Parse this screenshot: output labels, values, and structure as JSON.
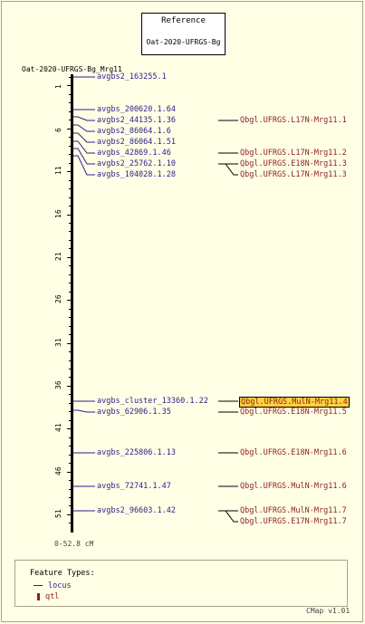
{
  "reference": {
    "heading": "Reference",
    "map_name": "Oat-2020-UFRGS-Bg"
  },
  "map": {
    "title": "Oat-2020-UFRGS-Bg_Mrg11",
    "range_label": "0-52.8 cM"
  },
  "axis": {
    "unit": "cM",
    "min": 0,
    "max": 52.8,
    "tick_labels": [
      "1",
      "6",
      "11",
      "16",
      "21",
      "26",
      "31",
      "36",
      "41",
      "46",
      "51"
    ]
  },
  "loci": [
    {
      "name": "avgbs2_163255.1",
      "pos": 0
    },
    {
      "name": "avgbs_200620.1.64",
      "pos": 3.8
    },
    {
      "name": "avgbs2_44135.1.36",
      "pos": 4.6
    },
    {
      "name": "avgbs2_86064.1.6",
      "pos": 5.6
    },
    {
      "name": "avgbs2_86064.1.51",
      "pos": 6.5
    },
    {
      "name": "avgbs_42869.1.46",
      "pos": 7.5
    },
    {
      "name": "avgbs2_25762.1.10",
      "pos": 8.3
    },
    {
      "name": "avgbs_104028.1.28",
      "pos": 9.2
    },
    {
      "name": "avgbs_cluster_13360.1.22",
      "pos": 37.8
    },
    {
      "name": "avgbs_62906.1.35",
      "pos": 38.9
    },
    {
      "name": "avgbs_225806.1.13",
      "pos": 43.8
    },
    {
      "name": "avgbs_72741.1.47",
      "pos": 47.7
    },
    {
      "name": "avgbs2_96603.1.42",
      "pos": 50.6
    }
  ],
  "qtls": [
    {
      "name": "Qbgl.UFRGS.L17N-Mrg11.1",
      "locus": 2,
      "highlight": false
    },
    {
      "name": "Qbgl.UFRGS.L17N-Mrg11.2",
      "locus": 5,
      "highlight": false
    },
    {
      "name": "Qbgl.UFRGS.E18N-Mrg11.3",
      "locus": 6,
      "highlight": false
    },
    {
      "name": "Qbgl.UFRGS.L17N-Mrg11.3",
      "locus": 6,
      "highlight": false
    },
    {
      "name": "Qbgl.UFRGS.MulN-Mrg11.4",
      "locus": 8,
      "highlight": true
    },
    {
      "name": "Qbgl.UFRGS.E18N-Mrg11.5",
      "locus": 9,
      "highlight": false
    },
    {
      "name": "Qbgl.UFRGS.E18N-Mrg11.6",
      "locus": 10,
      "highlight": false
    },
    {
      "name": "Qbgl.UFRGS.MulN-Mrg11.6",
      "locus": 11,
      "highlight": false
    },
    {
      "name": "Qbgl.UFRGS.MulN-Mrg11.7",
      "locus": 12,
      "highlight": false
    },
    {
      "name": "Qbgl.UFRGS.E17N-Mrg11.7",
      "locus": 12,
      "highlight": false
    }
  ],
  "legend": {
    "title": "Feature Types:",
    "locus_label": "locus",
    "qtl_label": "qtl"
  },
  "footer": {
    "version": "CMap v1.01"
  },
  "colors": {
    "locus": "#2b1f8c",
    "qtl": "#8c1f1f",
    "highlight": "#ffd23f",
    "background": "#ffffe6"
  }
}
